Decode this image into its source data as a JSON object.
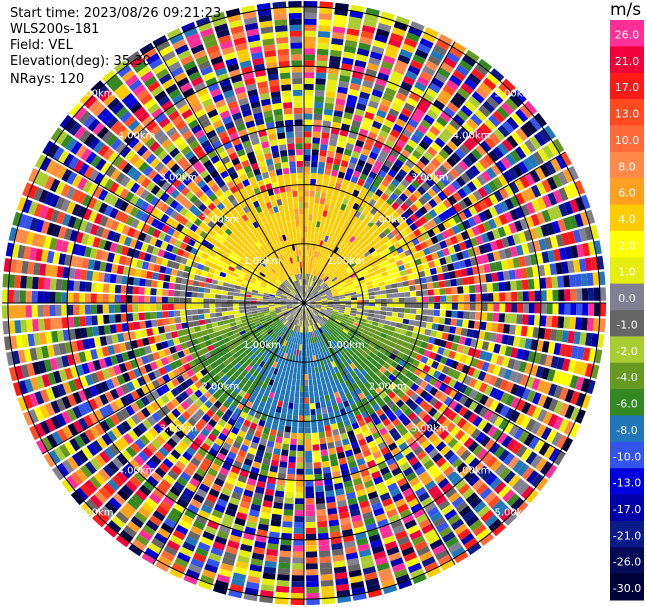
{
  "info": {
    "start_time": "Start time: 2023/08/26 09:21:23",
    "station": "WLS200s-181",
    "field": "Field: VEL",
    "elevation": "Elevation(deg): 35.30",
    "nrays": "NRays: 120"
  },
  "chart_data": {
    "type": "heatmap",
    "projection": "polar PPI",
    "rays": 120,
    "range_rings_km": [
      1.0,
      2.0,
      3.0,
      4.0,
      5.0
    ],
    "ring_labels": [
      "1.00km",
      "2.00km",
      "3.00km",
      "4.00km",
      "5.00km"
    ],
    "max_range_km": 5.1,
    "azimuth_lines_deg": [
      0,
      30,
      60,
      90,
      120,
      150,
      180,
      210,
      240,
      270,
      300,
      330
    ],
    "colorbar": {
      "unit": "m/s",
      "tick_labels": [
        "26.0",
        "21.0",
        "17.0",
        "13.0",
        "10.0",
        "8.0",
        "6.0",
        "4.0",
        "2.0",
        "1.0",
        "0.0",
        "-1.0",
        "-2.0",
        "-4.0",
        "-6.0",
        "-8.0",
        "-10.0",
        "-13.0",
        "-17.0",
        "-21.0",
        "-26.0",
        "-30.0"
      ],
      "colors": [
        "#ff2f9a",
        "#f0003a",
        "#ff1a1a",
        "#ff4a22",
        "#ff6a3a",
        "#ff8a4a",
        "#ffa020",
        "#ffcc00",
        "#ffff00",
        "#e6ee10",
        "#808090",
        "#666666",
        "#aacc33",
        "#669922",
        "#338822",
        "#2277bb",
        "#3355ee",
        "#0000dd",
        "#0000aa",
        "#0a1a88",
        "#050a55",
        "#02023a"
      ]
    },
    "field_summary": {
      "north_sector_near": "2.0 to 4.0",
      "south_sector_near": "-2.0 to -8.0",
      "center": "-1.0 to 1.0",
      "outer_rings": "noise, mixed values"
    }
  }
}
